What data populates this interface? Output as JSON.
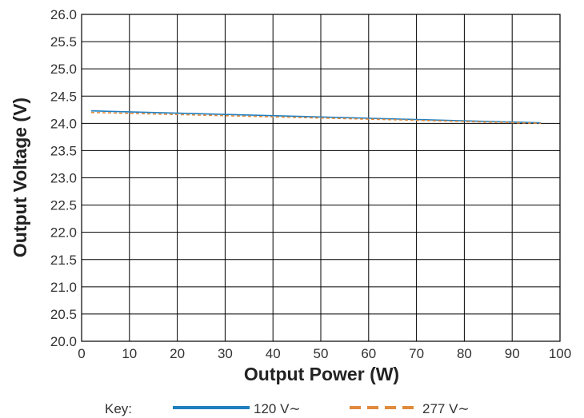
{
  "chart_data": {
    "type": "line",
    "xlabel": "Output Power (W)",
    "ylabel": "Output Voltage (V)",
    "xlim": [
      0,
      100
    ],
    "ylim": [
      20.0,
      26.0
    ],
    "x_ticks": [
      "0",
      "10",
      "20",
      "30",
      "40",
      "50",
      "60",
      "70",
      "80",
      "90",
      "100"
    ],
    "y_ticks": [
      "20.0",
      "20.5",
      "21.0",
      "21.5",
      "22.0",
      "22.5",
      "23.0",
      "23.5",
      "24.0",
      "24.5",
      "25.0",
      "25.5",
      "26.0"
    ],
    "grid": true,
    "legend": {
      "position": "bottom",
      "key_label": "Key:"
    },
    "series": [
      {
        "name": "120 V∼",
        "color": "#1f7fc0",
        "style": "solid",
        "x": [
          2,
          96
        ],
        "y": [
          24.23,
          24.01
        ]
      },
      {
        "name": "277 V∼",
        "color": "#e08a3c",
        "style": "dashed",
        "x": [
          2,
          96
        ],
        "y": [
          24.2,
          24.0
        ]
      }
    ]
  }
}
